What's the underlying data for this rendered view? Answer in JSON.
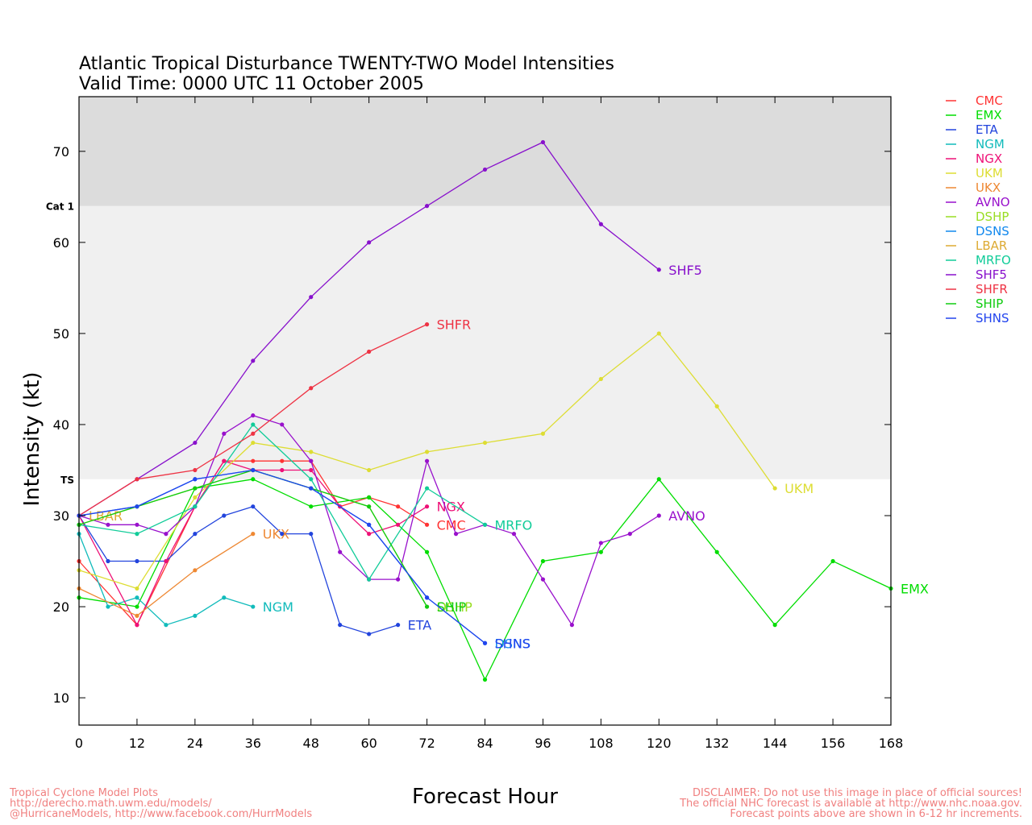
{
  "title_line1": "Atlantic Tropical Disturbance TWENTY-TWO Model Intensities",
  "title_line2": "Valid Time: 0000 UTC 11 October 2005",
  "footer_left": [
    "Tropical Cyclone Model Plots",
    "http://derecho.math.uwm.edu/models/",
    "@HurricaneModels, http://www.facebook.com/HurrModels"
  ],
  "footer_right": [
    "DISCLAIMER: Do not use this image in place of official sources!",
    "The official NHC forecast is available at http://www.nhc.noaa.gov.",
    "Forecast points above are shown in 6-12 hr increments."
  ],
  "chart_data": {
    "type": "line",
    "xlabel": "Forecast Hour",
    "ylabel": "Intensity (kt)",
    "xlim": [
      0,
      168
    ],
    "ylim": [
      7,
      76
    ],
    "xticks": [
      0,
      12,
      24,
      36,
      48,
      60,
      72,
      84,
      96,
      108,
      120,
      132,
      144,
      156,
      168
    ],
    "yticks": [
      10,
      20,
      30,
      40,
      50,
      60,
      70
    ],
    "grid": false,
    "legend_position": "right",
    "bands": [
      {
        "from": 34,
        "to": 64,
        "color": "#f0f0f0"
      },
      {
        "from": 64,
        "to": 76,
        "color": "#dcdcdc"
      }
    ],
    "thresholds": [
      {
        "label": "TS",
        "value": 34
      },
      {
        "label": "Cat 1",
        "value": 64
      }
    ],
    "series": [
      {
        "name": "CMC",
        "color": "#ff3333",
        "x": [
          0,
          12,
          24,
          30,
          36,
          42,
          48,
          54,
          60,
          66,
          72
        ],
        "y": [
          25,
          18,
          31,
          36,
          36,
          36,
          36,
          31,
          32,
          31,
          29
        ],
        "label": {
          "text": "CMC",
          "x": 72,
          "y": 29
        }
      },
      {
        "name": "EMX",
        "color": "#00dd00",
        "x": [
          0,
          12,
          24,
          36,
          48,
          60,
          72,
          84,
          96,
          108,
          120,
          132,
          144,
          156,
          168
        ],
        "y": [
          21,
          20,
          33,
          34,
          31,
          32,
          26,
          12,
          25,
          26,
          34,
          26,
          18,
          25,
          22
        ],
        "label": {
          "text": "EMX",
          "x": 168,
          "y": 22
        }
      },
      {
        "name": "ETA",
        "color": "#2244dd",
        "x": [
          0,
          6,
          12,
          18,
          24,
          30,
          36,
          42,
          48,
          54,
          60,
          66
        ],
        "y": [
          30,
          25,
          25,
          25,
          28,
          30,
          31,
          28,
          28,
          18,
          17,
          18
        ],
        "label": {
          "text": "ETA",
          "x": 66,
          "y": 18
        }
      },
      {
        "name": "NGM",
        "color": "#11bbbb",
        "x": [
          0,
          6,
          12,
          18,
          24,
          30,
          36
        ],
        "y": [
          28,
          20,
          21,
          18,
          19,
          21,
          20
        ],
        "label": {
          "text": "NGM",
          "x": 36,
          "y": 20
        }
      },
      {
        "name": "NGX",
        "color": "#ee1177",
        "x": [
          0,
          12,
          18,
          24,
          30,
          36,
          42,
          48,
          54,
          60,
          66,
          72
        ],
        "y": [
          30,
          18,
          25,
          31,
          36,
          35,
          35,
          35,
          31,
          28,
          29,
          31
        ],
        "label": {
          "text": "NGX",
          "x": 72,
          "y": 31
        }
      },
      {
        "name": "UKM",
        "color": "#dddd33",
        "x": [
          0,
          12,
          24,
          36,
          48,
          60,
          72,
          84,
          96,
          108,
          120,
          132,
          144
        ],
        "y": [
          24,
          22,
          32,
          38,
          37,
          35,
          37,
          38,
          39,
          45,
          50,
          42,
          33
        ],
        "label": {
          "text": "UKM",
          "x": 144,
          "y": 33
        }
      },
      {
        "name": "UKX",
        "color": "#ee8833",
        "x": [
          0,
          12,
          24,
          36
        ],
        "y": [
          22,
          19,
          24,
          28
        ],
        "label": {
          "text": "UKX",
          "x": 36,
          "y": 28
        }
      },
      {
        "name": "AVNO",
        "color": "#9911cc",
        "x": [
          0,
          6,
          12,
          18,
          24,
          30,
          36,
          42,
          48,
          54,
          60,
          66,
          72,
          78,
          84,
          90,
          96,
          102,
          108,
          114,
          120
        ],
        "y": [
          30,
          29,
          29,
          28,
          31,
          39,
          41,
          40,
          36,
          26,
          23,
          23,
          36,
          28,
          29,
          28,
          23,
          18,
          27,
          28,
          30
        ],
        "label": {
          "text": "AVNO",
          "x": 120,
          "y": 30
        }
      },
      {
        "name": "DSHP",
        "color": "#99dd22",
        "x": [
          0,
          12,
          24,
          36,
          48,
          60,
          72
        ],
        "y": [
          29,
          31,
          33,
          35,
          33,
          31,
          20
        ],
        "label": {
          "text": "DSHP",
          "x": 72,
          "y": 20
        }
      },
      {
        "name": "DSNS",
        "color": "#1188ee",
        "x": [
          0,
          12,
          24,
          36,
          48,
          60,
          72,
          84
        ],
        "y": [
          30,
          31,
          34,
          35,
          33,
          29,
          21,
          16
        ],
        "label": {
          "text": "DSNS",
          "x": 84,
          "y": 16
        }
      },
      {
        "name": "LBAR",
        "color": "#ddaa33",
        "x": [
          0
        ],
        "y": [
          30
        ],
        "label": {
          "text": "LBAR",
          "x": 0,
          "y": 30
        }
      },
      {
        "name": "MRFO",
        "color": "#11cc99",
        "x": [
          0,
          12,
          24,
          36,
          48,
          60,
          72,
          84
        ],
        "y": [
          29,
          28,
          31,
          40,
          34,
          23,
          33,
          29
        ],
        "label": {
          "text": "MRFO",
          "x": 84,
          "y": 29
        }
      },
      {
        "name": "SHF5",
        "color": "#8811cc",
        "x": [
          0,
          12,
          24,
          36,
          48,
          60,
          72,
          84,
          96,
          108,
          120
        ],
        "y": [
          30,
          34,
          38,
          47,
          54,
          60,
          64,
          68,
          71,
          62,
          57
        ],
        "label": {
          "text": "SHF5",
          "x": 120,
          "y": 57
        }
      },
      {
        "name": "SHFR",
        "color": "#ee3344",
        "x": [
          0,
          12,
          24,
          36,
          48,
          60,
          72
        ],
        "y": [
          30,
          34,
          35,
          39,
          44,
          48,
          51
        ],
        "label": {
          "text": "SHFR",
          "x": 72,
          "y": 51
        }
      },
      {
        "name": "SHIP",
        "color": "#11cc11",
        "x": [
          0,
          12,
          24,
          36,
          48,
          60,
          72
        ],
        "y": [
          29,
          31,
          33,
          35,
          33,
          31,
          20
        ],
        "label": {
          "text": "SHIP",
          "x": 72,
          "y": 20
        }
      },
      {
        "name": "SHNS",
        "color": "#2244ee",
        "x": [
          0,
          12,
          24,
          36,
          48,
          60,
          72,
          84
        ],
        "y": [
          30,
          31,
          34,
          35,
          33,
          29,
          21,
          16
        ],
        "label": {
          "text": "SHNS",
          "x": 84,
          "y": 16
        }
      }
    ]
  }
}
